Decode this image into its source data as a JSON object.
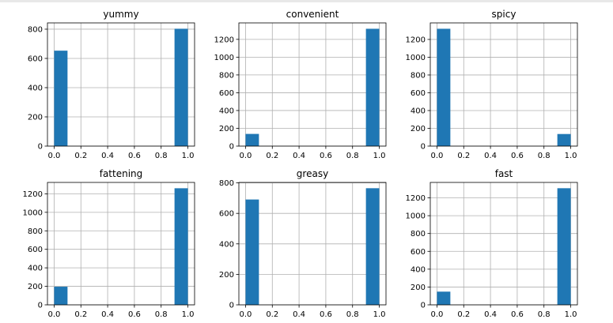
{
  "colors": {
    "bar": "#1f77b4",
    "grid": "#b0b0b0",
    "axis": "#000000",
    "background": "#ffffff"
  },
  "chart_data": [
    {
      "type": "bar",
      "title": "yummy",
      "categories": [
        "0",
        "1"
      ],
      "x": [
        0,
        1
      ],
      "values": [
        653,
        803
      ],
      "xlim": [
        -0.05,
        1.05
      ],
      "ylim": [
        0,
        843
      ],
      "xticks": [
        "0.0",
        "0.2",
        "0.4",
        "0.6",
        "0.8",
        "1.0"
      ],
      "yticks": [
        "0",
        "200",
        "400",
        "600",
        "800"
      ],
      "grid": true
    },
    {
      "type": "bar",
      "title": "convenient",
      "categories": [
        "0",
        "1"
      ],
      "x": [
        0,
        1
      ],
      "values": [
        137,
        1319
      ],
      "xlim": [
        -0.05,
        1.05
      ],
      "ylim": [
        0,
        1385
      ],
      "xticks": [
        "0.0",
        "0.2",
        "0.4",
        "0.6",
        "0.8",
        "1.0"
      ],
      "yticks": [
        "0",
        "200",
        "400",
        "600",
        "800",
        "1000",
        "1200"
      ],
      "grid": true
    },
    {
      "type": "bar",
      "title": "spicy",
      "categories": [
        "0",
        "1"
      ],
      "x": [
        0,
        1
      ],
      "values": [
        1320,
        136
      ],
      "xlim": [
        -0.05,
        1.05
      ],
      "ylim": [
        0,
        1386
      ],
      "xticks": [
        "0.0",
        "0.2",
        "0.4",
        "0.6",
        "0.8",
        "1.0"
      ],
      "yticks": [
        "0",
        "200",
        "400",
        "600",
        "800",
        "1000",
        "1200"
      ],
      "grid": true
    },
    {
      "type": "bar",
      "title": "fattening",
      "categories": [
        "0",
        "1"
      ],
      "x": [
        0,
        1
      ],
      "values": [
        196,
        1260
      ],
      "xlim": [
        -0.05,
        1.05
      ],
      "ylim": [
        0,
        1323
      ],
      "xticks": [
        "0.0",
        "0.2",
        "0.4",
        "0.6",
        "0.8",
        "1.0"
      ],
      "yticks": [
        "0",
        "200",
        "400",
        "600",
        "800",
        "1000",
        "1200"
      ],
      "grid": true
    },
    {
      "type": "bar",
      "title": "greasy",
      "categories": [
        "0",
        "1"
      ],
      "x": [
        0,
        1
      ],
      "values": [
        691,
        765
      ],
      "xlim": [
        -0.05,
        1.05
      ],
      "ylim": [
        0,
        803
      ],
      "xticks": [
        "0.0",
        "0.2",
        "0.4",
        "0.6",
        "0.8",
        "1.0"
      ],
      "yticks": [
        "0",
        "200",
        "400",
        "600",
        "800"
      ],
      "grid": true
    },
    {
      "type": "bar",
      "title": "fast",
      "categories": [
        "0",
        "1"
      ],
      "x": [
        0,
        1
      ],
      "values": [
        148,
        1308
      ],
      "xlim": [
        -0.05,
        1.05
      ],
      "ylim": [
        0,
        1373
      ],
      "xticks": [
        "0.0",
        "0.2",
        "0.4",
        "0.6",
        "0.8",
        "1.0"
      ],
      "yticks": [
        "0",
        "200",
        "400",
        "600",
        "800",
        "1000",
        "1200"
      ],
      "grid": true
    }
  ]
}
